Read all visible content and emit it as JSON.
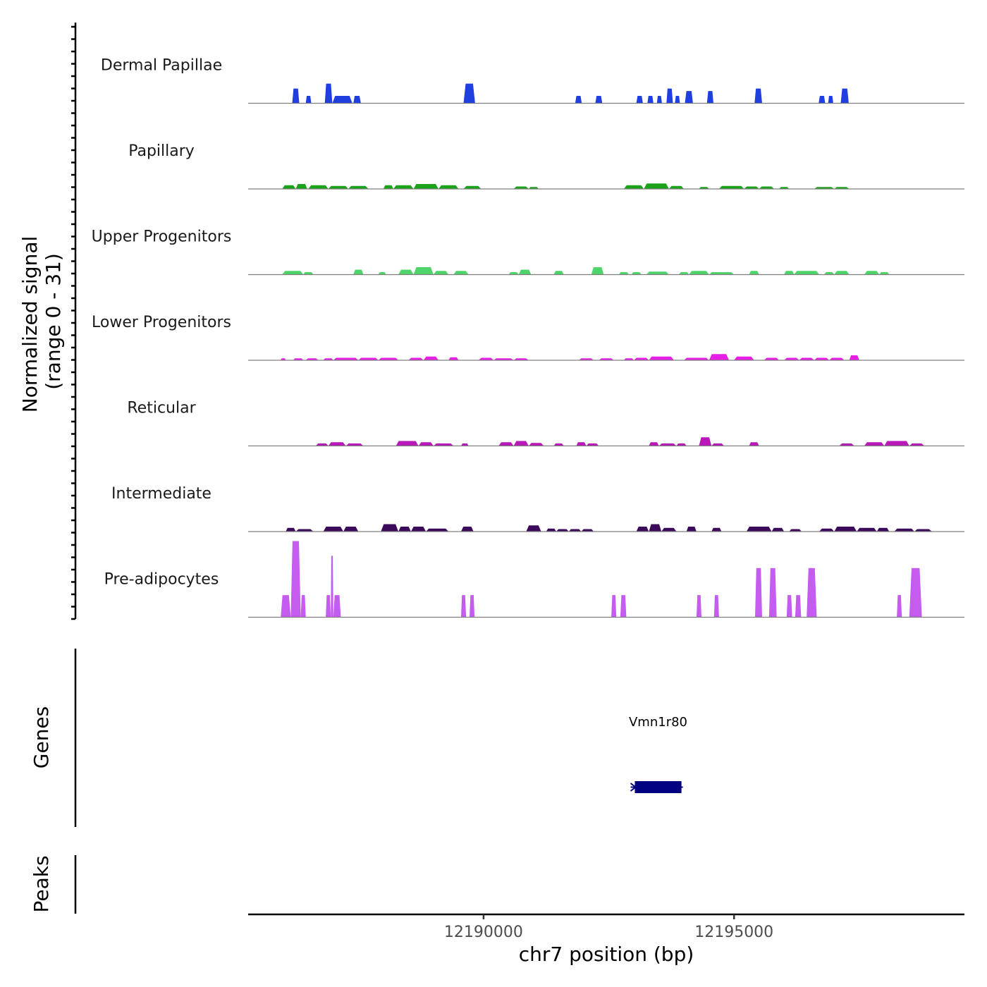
{
  "chart_data": {
    "type": "area",
    "title": "",
    "signal_axis": {
      "label_line1": "Normalized signal",
      "label_line2": "(range 0 - 31)",
      "range": [
        0,
        31
      ]
    },
    "genes_axis_label": "Genes",
    "peaks_axis_label": "Peaks",
    "xlabel": "chr7 position (bp)",
    "xlim": [
      12185300,
      12199600
    ],
    "x_ticks": [
      {
        "value": 12190000,
        "label": "12190000"
      },
      {
        "value": 12195000,
        "label": "12195000"
      }
    ],
    "series": [
      {
        "name": "Dermal Papillae",
        "color": "#1f3fe0",
        "peaks": [
          [
            12186180,
            12186320,
            6
          ],
          [
            12186450,
            12186560,
            3
          ],
          [
            12186830,
            12186980,
            8
          ],
          [
            12186980,
            12187380,
            3
          ],
          [
            12187400,
            12187550,
            3
          ],
          [
            12189600,
            12189830,
            8
          ],
          [
            12191830,
            12191960,
            3
          ],
          [
            12192230,
            12192370,
            3
          ],
          [
            12193050,
            12193180,
            3
          ],
          [
            12193270,
            12193390,
            3
          ],
          [
            12193460,
            12193560,
            3
          ],
          [
            12193650,
            12193780,
            6
          ],
          [
            12193820,
            12193920,
            3
          ],
          [
            12194020,
            12194180,
            5
          ],
          [
            12194460,
            12194590,
            5
          ],
          [
            12195410,
            12195560,
            6
          ],
          [
            12196690,
            12196820,
            3
          ],
          [
            12196880,
            12196980,
            3
          ],
          [
            12197130,
            12197290,
            6
          ]
        ]
      },
      {
        "name": "Papillary",
        "color": "#1aa31a",
        "peaks": [
          [
            12185980,
            12186250,
            1.5
          ],
          [
            12186250,
            12186480,
            2
          ],
          [
            12186500,
            12186900,
            1.5
          ],
          [
            12186900,
            12187300,
            1.2
          ],
          [
            12187300,
            12187700,
            1.2
          ],
          [
            12188000,
            12188200,
            1.5
          ],
          [
            12188200,
            12188600,
            1.5
          ],
          [
            12188600,
            12189100,
            2
          ],
          [
            12189100,
            12189500,
            1.5
          ],
          [
            12189600,
            12189950,
            1.2
          ],
          [
            12190600,
            12190900,
            1
          ],
          [
            12190900,
            12191100,
            0.8
          ],
          [
            12192800,
            12193200,
            1.5
          ],
          [
            12193200,
            12193700,
            2.2
          ],
          [
            12193700,
            12194000,
            1.2
          ],
          [
            12194300,
            12194500,
            0.8
          ],
          [
            12194700,
            12195200,
            1.2
          ],
          [
            12195200,
            12195500,
            1
          ],
          [
            12195500,
            12195800,
            1
          ],
          [
            12195900,
            12196100,
            0.8
          ],
          [
            12196600,
            12197000,
            0.8
          ],
          [
            12197000,
            12197300,
            0.8
          ]
        ]
      },
      {
        "name": "Upper Progenitors",
        "color": "#4fd46a",
        "peaks": [
          [
            12185980,
            12186400,
            1.5
          ],
          [
            12186400,
            12186600,
            1
          ],
          [
            12187400,
            12187600,
            2
          ],
          [
            12187900,
            12188050,
            1
          ],
          [
            12188300,
            12188600,
            2
          ],
          [
            12188600,
            12189000,
            3
          ],
          [
            12189000,
            12189300,
            1.5
          ],
          [
            12189400,
            12189700,
            1.5
          ],
          [
            12190500,
            12190700,
            1
          ],
          [
            12190700,
            12190950,
            2
          ],
          [
            12191400,
            12191600,
            1.5
          ],
          [
            12192150,
            12192400,
            3
          ],
          [
            12192700,
            12192900,
            1
          ],
          [
            12192950,
            12193150,
            1
          ],
          [
            12193250,
            12193700,
            1.2
          ],
          [
            12193900,
            12194100,
            1
          ],
          [
            12194100,
            12194500,
            1.5
          ],
          [
            12194500,
            12195000,
            1
          ],
          [
            12195300,
            12195500,
            1.5
          ],
          [
            12196000,
            12196200,
            1.5
          ],
          [
            12196200,
            12196700,
            1.5
          ],
          [
            12196800,
            12197000,
            1
          ],
          [
            12197000,
            12197300,
            1.5
          ],
          [
            12197600,
            12197900,
            1.5
          ],
          [
            12197900,
            12198100,
            1
          ]
        ]
      },
      {
        "name": "Lower Progenitors",
        "color": "#e61ee6",
        "peaks": [
          [
            12185950,
            12186050,
            0.8
          ],
          [
            12186200,
            12186400,
            0.8
          ],
          [
            12186450,
            12186700,
            0.8
          ],
          [
            12186800,
            12187000,
            0.8
          ],
          [
            12187000,
            12187500,
            1
          ],
          [
            12187500,
            12187900,
            1
          ],
          [
            12187900,
            12188300,
            1
          ],
          [
            12188500,
            12188800,
            1
          ],
          [
            12188800,
            12189100,
            1.5
          ],
          [
            12189300,
            12189500,
            1.2
          ],
          [
            12189900,
            12190200,
            1
          ],
          [
            12190200,
            12190600,
            0.8
          ],
          [
            12190600,
            12190900,
            0.8
          ],
          [
            12191900,
            12192200,
            0.8
          ],
          [
            12192300,
            12192600,
            0.8
          ],
          [
            12192800,
            12193000,
            0.8
          ],
          [
            12193000,
            12193300,
            1
          ],
          [
            12193300,
            12193800,
            1.5
          ],
          [
            12194000,
            12194500,
            1
          ],
          [
            12194500,
            12194900,
            2.5
          ],
          [
            12195000,
            12195400,
            1.5
          ],
          [
            12195600,
            12195900,
            1
          ],
          [
            12196000,
            12196300,
            1
          ],
          [
            12196300,
            12196600,
            1
          ],
          [
            12196600,
            12196900,
            1
          ],
          [
            12196900,
            12197200,
            1
          ],
          [
            12197300,
            12197500,
            2
          ]
        ]
      },
      {
        "name": "Reticular",
        "color": "#b818b8",
        "peaks": [
          [
            12186650,
            12186900,
            1
          ],
          [
            12186900,
            12187250,
            1.5
          ],
          [
            12187250,
            12187600,
            1
          ],
          [
            12188250,
            12188700,
            2
          ],
          [
            12188700,
            12189000,
            1.5
          ],
          [
            12189000,
            12189400,
            1
          ],
          [
            12189550,
            12189700,
            1
          ],
          [
            12190300,
            12190600,
            1.5
          ],
          [
            12190600,
            12190900,
            2
          ],
          [
            12190900,
            12191200,
            1.2
          ],
          [
            12191400,
            12191600,
            1
          ],
          [
            12191850,
            12192050,
            1.5
          ],
          [
            12192050,
            12192300,
            1
          ],
          [
            12193300,
            12193500,
            1.5
          ],
          [
            12193500,
            12193850,
            1
          ],
          [
            12193850,
            12194050,
            1
          ],
          [
            12194300,
            12194550,
            3.5
          ],
          [
            12194550,
            12194800,
            1
          ],
          [
            12195300,
            12195500,
            1.5
          ],
          [
            12197100,
            12197400,
            1
          ],
          [
            12197600,
            12198000,
            1.5
          ],
          [
            12198000,
            12198500,
            2
          ],
          [
            12198500,
            12198800,
            1
          ]
        ]
      },
      {
        "name": "Intermediate",
        "color": "#3b0a5a",
        "peaks": [
          [
            12186050,
            12186250,
            1.5
          ],
          [
            12186250,
            12186600,
            1
          ],
          [
            12186800,
            12187200,
            2
          ],
          [
            12187200,
            12187500,
            2
          ],
          [
            12187950,
            12188300,
            3
          ],
          [
            12188300,
            12188550,
            2
          ],
          [
            12188550,
            12188850,
            2
          ],
          [
            12188850,
            12189300,
            1.2
          ],
          [
            12189550,
            12189800,
            2
          ],
          [
            12190850,
            12191150,
            2.5
          ],
          [
            12191250,
            12191450,
            1.2
          ],
          [
            12191450,
            12191700,
            1
          ],
          [
            12191700,
            12191950,
            1
          ],
          [
            12191950,
            12192200,
            1
          ],
          [
            12193050,
            12193300,
            2
          ],
          [
            12193300,
            12193550,
            3
          ],
          [
            12193550,
            12193850,
            1.5
          ],
          [
            12194050,
            12194250,
            2
          ],
          [
            12194550,
            12194750,
            1.5
          ],
          [
            12195250,
            12195750,
            2
          ],
          [
            12195750,
            12196000,
            1.5
          ],
          [
            12196100,
            12196350,
            1
          ],
          [
            12196700,
            12197000,
            1.2
          ],
          [
            12197000,
            12197450,
            2
          ],
          [
            12197450,
            12197850,
            1.5
          ],
          [
            12197850,
            12198100,
            1.5
          ],
          [
            12198200,
            12198600,
            1.2
          ],
          [
            12198600,
            12198950,
            1
          ]
        ]
      },
      {
        "name": "Pre-adipocytes",
        "color": "#c55cf0",
        "peaks": [
          [
            12185950,
            12186150,
            9
          ],
          [
            12186150,
            12186350,
            31
          ],
          [
            12186350,
            12186450,
            9
          ],
          [
            12186850,
            12186950,
            9
          ],
          [
            12186950,
            12187000,
            25
          ],
          [
            12187000,
            12187150,
            9
          ],
          [
            12189550,
            12189650,
            9
          ],
          [
            12189720,
            12189820,
            9
          ],
          [
            12192550,
            12192650,
            9
          ],
          [
            12192730,
            12192850,
            9
          ],
          [
            12194250,
            12194350,
            9
          ],
          [
            12194600,
            12194700,
            9
          ],
          [
            12195420,
            12195560,
            20
          ],
          [
            12195700,
            12195850,
            20
          ],
          [
            12196050,
            12196160,
            9
          ],
          [
            12196220,
            12196340,
            9
          ],
          [
            12196450,
            12196650,
            20
          ],
          [
            12198250,
            12198350,
            9
          ],
          [
            12198500,
            12198750,
            20
          ]
        ]
      }
    ],
    "genes": [
      {
        "name": "Vmn1r80",
        "start": 12193020,
        "end": 12193950,
        "strand": "-",
        "color": "#000080"
      }
    ],
    "peaks_track": []
  }
}
